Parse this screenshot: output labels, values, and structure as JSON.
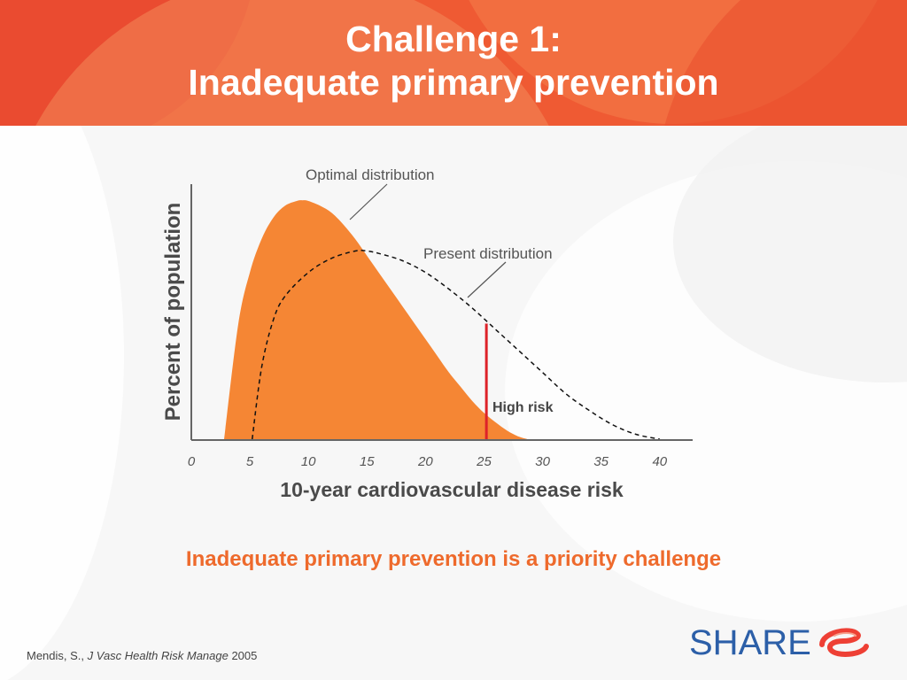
{
  "header": {
    "title_line1": "Challenge 1:",
    "title_line2": "Inadequate primary prevention"
  },
  "chart_data": {
    "type": "area",
    "xlabel": "10-year cardiovascular disease risk",
    "ylabel": "Percent of population",
    "xlim": [
      0,
      43
    ],
    "x_ticks": [
      0,
      5,
      10,
      15,
      20,
      25,
      30,
      35,
      40
    ],
    "series": [
      {
        "name": "Optimal distribution",
        "style": "filled",
        "color": "#f58634",
        "x": [
          2.8,
          4,
          5,
          6,
          7,
          8,
          9,
          9.5,
          10,
          11,
          12,
          13,
          14,
          15,
          16,
          17,
          18,
          19,
          20,
          21,
          22,
          23,
          24,
          25,
          26,
          27,
          28,
          28.7
        ],
        "y": [
          0,
          48,
          70,
          84,
          93,
          98,
          100,
          100.3,
          100,
          98,
          95,
          90,
          84,
          77,
          70,
          63,
          56,
          49,
          42,
          35,
          28,
          22,
          16,
          11,
          7,
          3.5,
          1,
          0
        ]
      },
      {
        "name": "Present distribution",
        "style": "dashed",
        "color": "#111111",
        "x": [
          5.2,
          6,
          7,
          8,
          10,
          12,
          14,
          15,
          16,
          18,
          20,
          22,
          24,
          26,
          28,
          30,
          32,
          34,
          36,
          38,
          40
        ],
        "y": [
          0,
          30,
          50,
          60,
          70,
          76,
          79,
          79,
          78,
          75,
          70,
          63,
          55,
          46,
          37,
          28,
          19,
          12,
          6,
          2,
          0
        ]
      }
    ],
    "threshold": {
      "x": 25.2,
      "label": "High risk",
      "color": "#dd2229"
    }
  },
  "annotations": {
    "optimal": "Optimal distribution",
    "present": "Present distribution",
    "high_risk": "High risk"
  },
  "tagline": "Inadequate primary prevention is a priority challenge",
  "citation": {
    "author": "Mendis, S., ",
    "journal": "J Vasc Health Risk Manage",
    "year": " 2005"
  },
  "logo": {
    "text": "SHARE",
    "icon": "share-swirl-icon"
  },
  "colors": {
    "header": "#ef5a33",
    "accent": "#ee6a2c",
    "logo": "#2c5fa8"
  }
}
